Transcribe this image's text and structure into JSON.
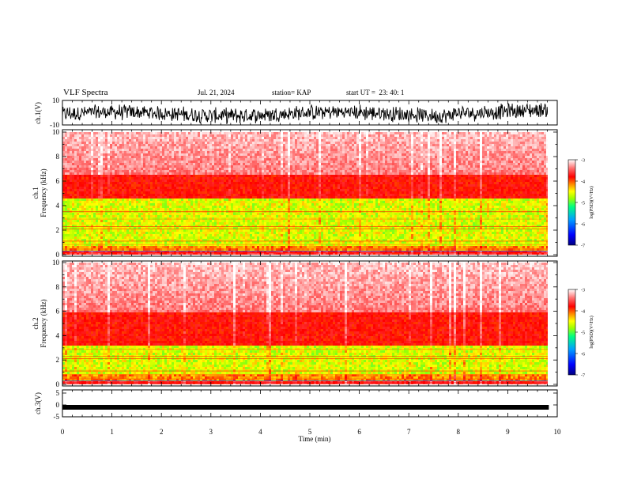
{
  "header": {
    "title": "VLF Spectra",
    "date": "Jul. 21, 2024",
    "station": "station= KAP",
    "start": "start UT =  23: 40: 1"
  },
  "colorbar": {
    "label": "log(PSD)(V²/Hz)",
    "ticks": [
      "-3",
      "-4",
      "-5",
      "-6",
      "-7"
    ],
    "range": [
      -7,
      -3
    ],
    "colors": [
      "#000080",
      "#0000ff",
      "#00a0ff",
      "#00ff80",
      "#a0ff00",
      "#ffff00",
      "#ff8000",
      "#ff0000",
      "#ffffff"
    ]
  },
  "chart_data": [
    {
      "type": "line",
      "panel": "ch.1 waveform",
      "ylabel": "ch.1(V)",
      "ylim": [
        -10,
        10
      ],
      "yticks": [
        "10",
        "-10"
      ],
      "xlim": [
        0,
        10
      ],
      "color": "#000000",
      "description_values": {
        "approx_center": -1,
        "approx_spread": 6
      }
    },
    {
      "type": "heatmap",
      "panel": "ch.1 spectrogram",
      "ylabel": "ch.1 Frequency (kHz)",
      "ylim": [
        0,
        10
      ],
      "yticks": [
        "0",
        "2",
        "4",
        "6",
        "8",
        "10"
      ],
      "xlim": [
        0,
        9.83
      ],
      "z_range": [
        -7,
        -3
      ],
      "green_band_khz": [
        0.8,
        4.5
      ],
      "red_to_white_transition_khz": 6.5
    },
    {
      "type": "heatmap",
      "panel": "ch.2 spectrogram",
      "ylabel": "ch.2 Frequency (kHz)",
      "ylim": [
        0,
        10
      ],
      "yticks": [
        "0",
        "2",
        "4",
        "6",
        "8",
        "10"
      ],
      "xlim": [
        0,
        9.83
      ],
      "z_range": [
        -7,
        -3
      ],
      "green_band_khz": [
        0.8,
        3.2
      ],
      "red_to_white_transition_khz": 6.0
    },
    {
      "type": "line",
      "panel": "ch.3 waveform",
      "ylabel": "ch.3(V)",
      "ylim": [
        -5,
        5
      ],
      "yticks": [
        "5",
        "0",
        "-5"
      ],
      "xlim": [
        0,
        9.83
      ],
      "value": -1,
      "color": "#000000"
    }
  ],
  "xaxis": {
    "label": "Time (min)",
    "ticks": [
      "0",
      "1",
      "2",
      "3",
      "4",
      "5",
      "6",
      "7",
      "8",
      "9",
      "10"
    ],
    "range": [
      0,
      10
    ]
  }
}
